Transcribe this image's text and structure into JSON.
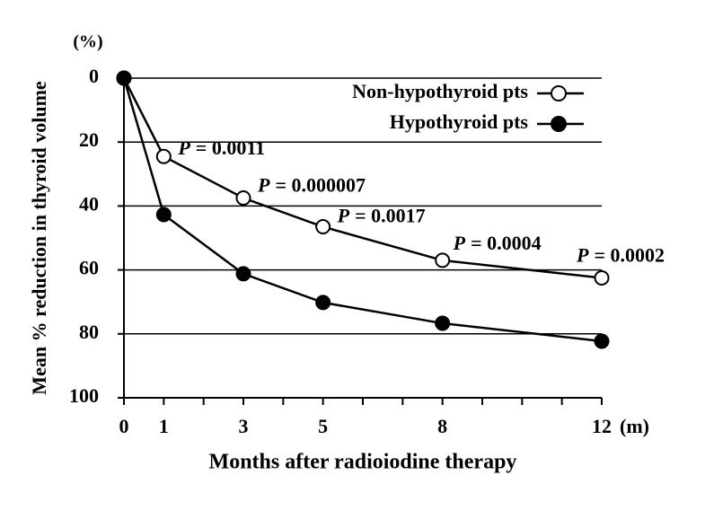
{
  "chart_data": {
    "type": "line",
    "y_label": "Mean % reduction in thyroid volume",
    "y_unit": "(%)",
    "x_label": "Months after radioiodine therapy",
    "x_unit": "(m)",
    "x": [
      0,
      1,
      3,
      5,
      8,
      12
    ],
    "series": [
      {
        "name": "Non-hypothyroid pts",
        "color": "#000000",
        "marker_fill": "#ffffff",
        "values": [
          0,
          24.5,
          37.5,
          46.5,
          57,
          62.5
        ]
      },
      {
        "name": "Hypothyroid pts",
        "color": "#000000",
        "marker_fill": "#000000",
        "values": [
          0,
          42.7,
          61.2,
          70.2,
          76.7,
          82.3
        ]
      }
    ],
    "annotations": [
      {
        "italic": "P",
        "text": "= 0.0011"
      },
      {
        "italic": "P",
        "text": "= 0.000007"
      },
      {
        "italic": "P",
        "text": "= 0.0017"
      },
      {
        "italic": "P",
        "text": "= 0.0004"
      },
      {
        "italic": "P",
        "text": "= 0.0002"
      }
    ],
    "xlim": [
      0,
      12
    ],
    "xticks": [
      0,
      1,
      3,
      5,
      8,
      12
    ],
    "minor_xticks": [
      2,
      4,
      6,
      7,
      9,
      10,
      11
    ],
    "ylim": [
      0,
      100
    ],
    "y_inverted": true,
    "yticks": [
      0,
      20,
      40,
      60,
      80,
      100
    ],
    "grid": true,
    "legend": "top-right"
  }
}
